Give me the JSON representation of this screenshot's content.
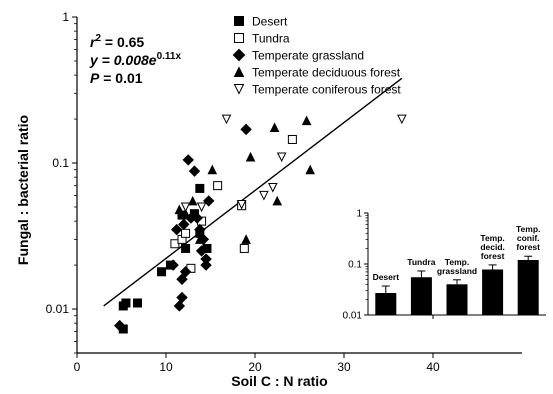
{
  "chart_data": [
    {
      "type": "scatter",
      "title": "",
      "xlabel": "Soil C : N ratio",
      "ylabel": "Fungal : bacterial ratio",
      "xlim": [
        0,
        50
      ],
      "ylim": [
        0.005,
        1
      ],
      "yscale": "log",
      "xticks": [
        "0",
        "10",
        "20",
        "30",
        "40"
      ],
      "yticks": [
        "0.01",
        "0.1",
        "1"
      ],
      "grid": false,
      "legend": "top",
      "annotations": [
        {
          "key": "r2",
          "prefix": "r",
          "sup": "2",
          "text": " = 0.65"
        },
        {
          "key": "eq",
          "prefix": "y = 0.008e",
          "sup": "0.11x",
          "text": ""
        },
        {
          "key": "p",
          "prefix": "P",
          "sup": "",
          "text": " = 0.01"
        }
      ],
      "fit_line": {
        "x": [
          3,
          36.5
        ],
        "y": [
          0.0105,
          0.38
        ]
      },
      "series": [
        {
          "name": "Desert",
          "marker": "square-filled",
          "points": [
            [
              5.2,
              0.0073
            ],
            [
              5.2,
              0.0105
            ],
            [
              5.5,
              0.011
            ],
            [
              6.8,
              0.011
            ],
            [
              9.5,
              0.018
            ],
            [
              10.5,
              0.02
            ],
            [
              11.8,
              0.044
            ],
            [
              12.2,
              0.026
            ],
            [
              13.2,
              0.045
            ],
            [
              13.8,
              0.033
            ],
            [
              13.8,
              0.067
            ],
            [
              14.6,
              0.026
            ]
          ]
        },
        {
          "name": "Tundra",
          "marker": "square-open",
          "points": [
            [
              11.0,
              0.028
            ],
            [
              11.8,
              0.03
            ],
            [
              12.2,
              0.033
            ],
            [
              12.8,
              0.019
            ],
            [
              14.0,
              0.04
            ],
            [
              15.8,
              0.07
            ],
            [
              18.5,
              0.051
            ],
            [
              18.8,
              0.026
            ],
            [
              24.2,
              0.145
            ]
          ]
        },
        {
          "name": "Temperate grassland",
          "marker": "diamond-filled",
          "points": [
            [
              4.8,
              0.0077
            ],
            [
              10.8,
              0.02
            ],
            [
              11.2,
              0.035
            ],
            [
              11.5,
              0.0105
            ],
            [
              11.8,
              0.016
            ],
            [
              11.8,
              0.012
            ],
            [
              12.0,
              0.038
            ],
            [
              12.2,
              0.018
            ],
            [
              12.5,
              0.105
            ],
            [
              12.8,
              0.042
            ],
            [
              13.2,
              0.088
            ],
            [
              13.5,
              0.042
            ],
            [
              13.8,
              0.035
            ],
            [
              14.0,
              0.025
            ],
            [
              14.2,
              0.03
            ],
            [
              14.5,
              0.022
            ],
            [
              14.5,
              0.02
            ],
            [
              14.8,
              0.055
            ],
            [
              19.0,
              0.17
            ]
          ]
        },
        {
          "name": "Temperate deciduous forest",
          "marker": "triangle-filled",
          "points": [
            [
              11.5,
              0.048
            ],
            [
              12.2,
              0.045
            ],
            [
              13.0,
              0.055
            ],
            [
              13.8,
              0.03
            ],
            [
              15.2,
              0.09
            ],
            [
              19.0,
              0.03
            ],
            [
              19.5,
              0.11
            ],
            [
              22.2,
              0.175
            ],
            [
              22.5,
              0.055
            ],
            [
              25.8,
              0.195
            ],
            [
              26.2,
              0.09
            ]
          ]
        },
        {
          "name": "Temperate coniferous forest",
          "marker": "triangle-open",
          "points": [
            [
              12.2,
              0.05
            ],
            [
              14.0,
              0.05
            ],
            [
              16.8,
              0.2
            ],
            [
              18.5,
              0.052
            ],
            [
              21.0,
              0.06
            ],
            [
              22.0,
              0.068
            ],
            [
              23.0,
              0.11
            ],
            [
              36.5,
              0.2
            ]
          ]
        }
      ]
    },
    {
      "type": "bar",
      "title": "",
      "yscale": "log",
      "ylim": [
        0.01,
        1
      ],
      "yticks": [
        "0.01",
        "0.1",
        "1"
      ],
      "categories": [
        "Desert",
        "Tundra",
        "Temp. grassland",
        "Temp. decid. forest",
        "Temp. conif. forest"
      ],
      "label_lines": [
        [
          "Desert"
        ],
        [
          "Tundra"
        ],
        [
          "Temp.",
          "grassland"
        ],
        [
          "Temp.",
          "decid.",
          "forest"
        ],
        [
          "Temp.",
          "conif.",
          "forest"
        ]
      ],
      "values": [
        0.027,
        0.055,
        0.04,
        0.078,
        0.12
      ],
      "errors": [
        0.01,
        0.018,
        0.009,
        0.018,
        0.022
      ]
    }
  ]
}
